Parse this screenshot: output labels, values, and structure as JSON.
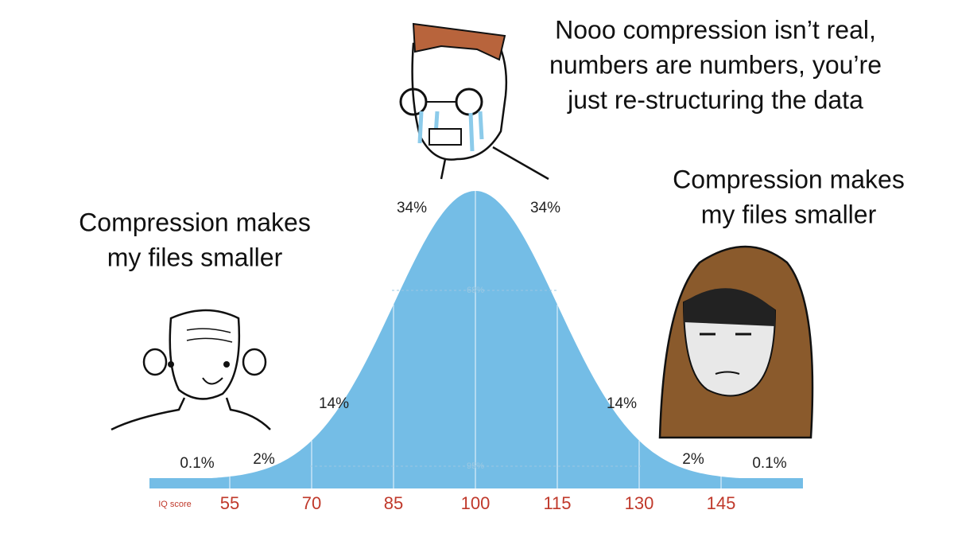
{
  "captions": {
    "left": [
      "Compression makes",
      "my files smaller"
    ],
    "middle": [
      "Nooo compression isn’t real,",
      "numbers are numbers, you’re",
      "just re-structuring the data"
    ],
    "right": [
      "Compression makes",
      "my files smaller"
    ]
  },
  "curve": {
    "segment_labels": [
      "0.1%",
      "2%",
      "14%",
      "34%",
      "34%",
      "14%",
      "2%",
      "0.1%"
    ],
    "band_labels": [
      "68%",
      "95%"
    ],
    "axis_label": "IQ score",
    "ticks": [
      55,
      70,
      85,
      100,
      115,
      130,
      145
    ]
  }
}
